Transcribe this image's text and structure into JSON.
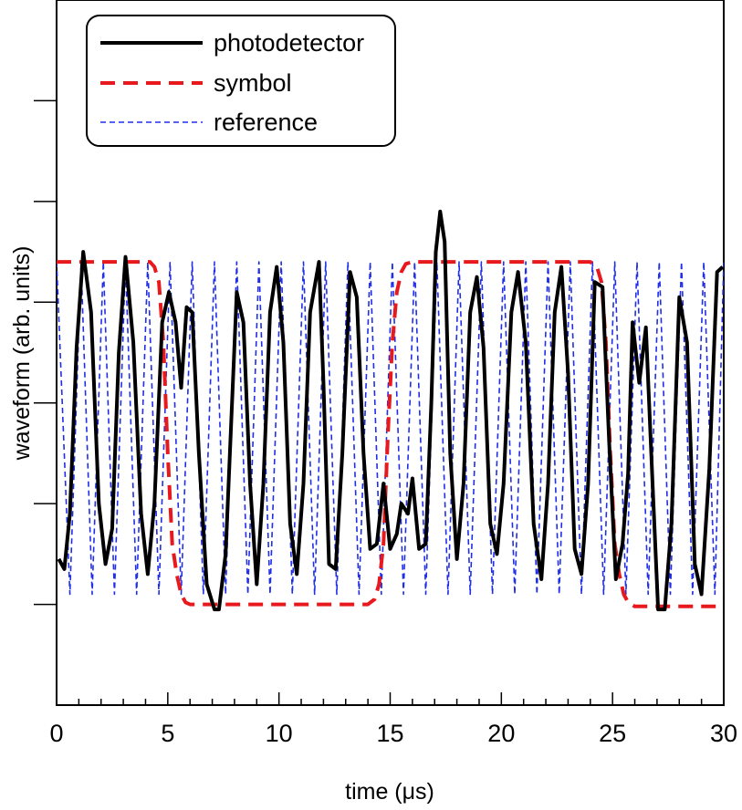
{
  "chart_data": {
    "type": "line",
    "xlabel": "time (μs)",
    "ylabel": "waveform (arb. units)",
    "xlim": [
      0,
      30
    ],
    "ylim": [
      0,
      7
    ],
    "x_ticks": [
      0,
      5,
      10,
      15,
      20,
      25,
      30
    ],
    "x_minor_step": 1,
    "y_ticks": [
      1,
      2,
      3,
      4,
      5,
      6,
      7
    ],
    "y_tick_labels_shown": false,
    "grid": false,
    "legend_position": "top-left",
    "series": [
      {
        "name": "photodetector",
        "color": "#000000",
        "style": "solid",
        "x": [
          0.1,
          0.35,
          0.6,
          0.9,
          1.2,
          1.55,
          1.9,
          2.2,
          2.5,
          2.8,
          3.1,
          3.45,
          3.8,
          4.1,
          4.4,
          4.75,
          5.05,
          5.35,
          5.6,
          5.85,
          6.1,
          6.4,
          6.75,
          7.1,
          7.3,
          7.6,
          7.85,
          8.1,
          8.4,
          8.7,
          9.0,
          9.3,
          9.6,
          9.9,
          10.2,
          10.5,
          10.8,
          11.1,
          11.4,
          11.8,
          12.0,
          12.25,
          12.55,
          12.85,
          13.2,
          13.5,
          13.8,
          14.1,
          14.4,
          14.7,
          15.0,
          15.3,
          15.5,
          15.8,
          16.0,
          16.3,
          16.6,
          16.85,
          17.05,
          17.25,
          17.45,
          17.7,
          18.0,
          18.3,
          18.6,
          18.9,
          19.2,
          19.5,
          19.8,
          20.1,
          20.45,
          20.75,
          21.1,
          21.45,
          21.8,
          22.1,
          22.4,
          22.7,
          23.0,
          23.3,
          23.6,
          23.9,
          24.2,
          24.55,
          24.85,
          25.15,
          25.45,
          25.7,
          25.9,
          26.2,
          26.5,
          26.8,
          27.05,
          27.35,
          27.65,
          28.0,
          28.35,
          28.7,
          29.0,
          29.35,
          29.7,
          29.95
        ],
        "values": [
          1.45,
          1.35,
          1.9,
          3.55,
          4.5,
          3.9,
          2.0,
          1.4,
          1.75,
          3.5,
          4.45,
          3.6,
          1.9,
          1.3,
          2.0,
          3.8,
          4.1,
          3.8,
          3.15,
          3.95,
          3.9,
          2.5,
          1.2,
          0.95,
          0.95,
          1.5,
          2.8,
          4.1,
          3.8,
          2.2,
          1.2,
          2.2,
          3.9,
          4.35,
          3.6,
          1.8,
          1.3,
          2.2,
          3.9,
          4.4,
          3.2,
          1.4,
          1.35,
          2.5,
          4.3,
          4.05,
          2.5,
          1.55,
          1.6,
          2.2,
          1.55,
          1.7,
          2.0,
          1.9,
          2.25,
          1.55,
          1.6,
          3.0,
          4.5,
          4.9,
          4.6,
          2.5,
          1.45,
          2.2,
          3.9,
          4.25,
          3.55,
          1.8,
          1.5,
          2.2,
          3.9,
          4.3,
          3.6,
          1.8,
          1.25,
          2.2,
          3.9,
          4.35,
          3.3,
          1.55,
          1.3,
          2.2,
          4.2,
          4.15,
          2.6,
          1.25,
          1.6,
          2.3,
          3.8,
          3.2,
          3.75,
          2.2,
          0.95,
          0.95,
          1.8,
          4.05,
          3.6,
          1.4,
          1.1,
          2.35,
          4.3,
          4.35
        ]
      },
      {
        "name": "symbol",
        "color": "#e8191c",
        "style": "dashed",
        "x": [
          0.0,
          4.2,
          4.4,
          4.6,
          4.8,
          5.0,
          5.2,
          5.4,
          5.6,
          5.8,
          6.0,
          6.3,
          14.0,
          14.3,
          14.5,
          14.7,
          14.9,
          15.1,
          15.3,
          15.5,
          15.7,
          16.0,
          16.3,
          24.0,
          24.3,
          24.5,
          24.7,
          24.9,
          25.1,
          25.3,
          25.5,
          25.7,
          26.0,
          26.3,
          30.0
        ],
        "values": [
          4.4,
          4.4,
          4.35,
          4.2,
          3.6,
          2.5,
          1.6,
          1.3,
          1.1,
          1.02,
          1.0,
          1.0,
          1.0,
          1.05,
          1.2,
          1.6,
          2.7,
          3.6,
          4.1,
          4.3,
          4.38,
          4.4,
          4.4,
          4.4,
          4.35,
          4.2,
          3.6,
          2.5,
          1.6,
          1.3,
          1.1,
          1.02,
          0.98,
          0.98,
          0.98
        ]
      },
      {
        "name": "reference",
        "color": "#1f2ee8",
        "style": "short-dashed",
        "x": [
          0.0,
          0.6,
          1.1,
          1.6,
          2.1,
          2.6,
          3.1,
          3.6,
          4.1,
          4.6,
          5.1,
          5.6,
          6.1,
          6.6,
          7.1,
          7.6,
          8.1,
          8.6,
          9.1,
          9.6,
          10.1,
          10.6,
          11.1,
          11.6,
          12.1,
          12.6,
          13.1,
          13.6,
          14.1,
          14.6,
          15.1,
          15.6,
          16.1,
          16.6,
          17.1,
          17.6,
          18.1,
          18.6,
          19.1,
          19.6,
          20.1,
          20.6,
          21.1,
          21.6,
          22.1,
          22.6,
          23.1,
          23.6,
          24.1,
          24.6,
          25.1,
          25.6,
          26.1,
          26.6,
          27.1,
          27.6,
          28.1,
          28.6,
          29.1,
          29.6,
          30.0
        ],
        "values": [
          4.4,
          1.1,
          4.4,
          1.1,
          4.4,
          1.1,
          4.4,
          1.1,
          4.4,
          1.1,
          4.4,
          1.1,
          4.4,
          1.1,
          4.4,
          1.1,
          4.4,
          1.1,
          4.4,
          1.1,
          4.4,
          1.1,
          4.4,
          1.1,
          4.4,
          1.1,
          4.4,
          1.1,
          4.4,
          1.1,
          4.4,
          1.1,
          4.4,
          1.1,
          4.4,
          1.1,
          4.4,
          1.1,
          4.4,
          1.1,
          4.4,
          1.1,
          4.4,
          1.1,
          4.4,
          1.1,
          4.4,
          1.1,
          4.4,
          1.1,
          4.4,
          1.1,
          4.4,
          1.1,
          4.4,
          1.1,
          4.4,
          1.1,
          4.4,
          1.1,
          4.4
        ]
      }
    ]
  }
}
